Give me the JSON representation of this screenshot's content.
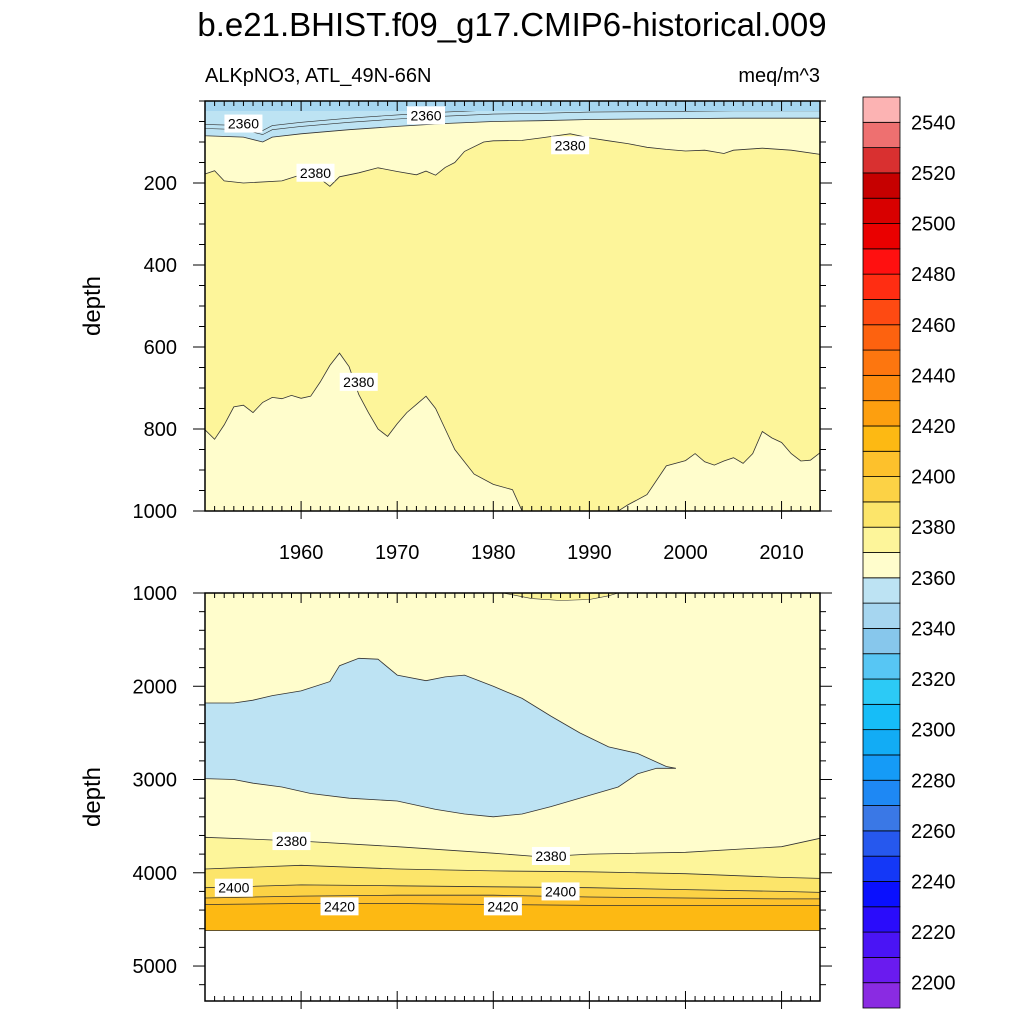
{
  "colors": {
    "c2360": "#bde3f3",
    "c2370": "#fffdcc",
    "c2380": "#fdf59a",
    "c2390": "#fce56a",
    "c2400": "#fcd245",
    "c2410": "#fdc12c",
    "c2420": "#fdb913",
    "c2350": "#a6d6f0",
    "c2340": "#87c7ec"
  },
  "chart_data": {
    "type": "contour",
    "title": "b.e21.BHIST.f09_g17.CMIP6-historical.009",
    "left_subtitle": "ALKpNO3, ATL_49N-66N",
    "right_subtitle": "meq/m^3",
    "panels": [
      {
        "name": "upper",
        "ylabel": "depth",
        "xlim": [
          1950,
          2014
        ],
        "ylim": [
          1000,
          0
        ],
        "x_ticks": [
          1960,
          1970,
          1980,
          1990,
          2000,
          2010
        ],
        "y_ticks": [
          200,
          400,
          600,
          800,
          1000
        ],
        "contour_labels": [
          {
            "text": "2360",
            "x": 1954,
            "y": 55
          },
          {
            "text": "2360",
            "x": 1973,
            "y": 35
          },
          {
            "text": "2380",
            "x": 1961.5,
            "y": 175
          },
          {
            "text": "2380",
            "x": 1988,
            "y": 108
          },
          {
            "text": "2380",
            "x": 1966,
            "y": 685
          }
        ],
        "contour_levels": {
          "boundary_2370": [
            [
              1950,
              85
            ],
            [
              1954,
              88
            ],
            [
              1956,
              100
            ],
            [
              1957,
              88
            ],
            [
              1960,
              80
            ],
            [
              1965,
              70
            ],
            [
              1970,
              62
            ],
            [
              1975,
              55
            ],
            [
              1980,
              50
            ],
            [
              1985,
              48
            ],
            [
              1990,
              45
            ],
            [
              1995,
              44
            ],
            [
              2000,
              43
            ],
            [
              2005,
              42
            ],
            [
              2010,
              42
            ],
            [
              2014,
              42
            ]
          ],
          "boundary_2380_top": [
            [
              1950,
              178
            ],
            [
              1951,
              170
            ],
            [
              1952,
              195
            ],
            [
              1954,
              200
            ],
            [
              1958,
              195
            ],
            [
              1960,
              180
            ],
            [
              1961,
              168
            ],
            [
              1962,
              190
            ],
            [
              1963,
              208
            ],
            [
              1964,
              185
            ],
            [
              1966,
              175
            ],
            [
              1968,
              163
            ],
            [
              1970,
              172
            ],
            [
              1972,
              180
            ],
            [
              1973,
              171
            ],
            [
              1974,
              181
            ],
            [
              1975,
              162
            ],
            [
              1976,
              150
            ],
            [
              1977,
              123
            ],
            [
              1979,
              100
            ],
            [
              1980,
              97
            ],
            [
              1983,
              96
            ],
            [
              1985,
              90
            ],
            [
              1988,
              80
            ],
            [
              1990,
              90
            ],
            [
              1992,
              97
            ],
            [
              1994,
              104
            ],
            [
              1996,
              113
            ],
            [
              1998,
              118
            ],
            [
              2000,
              122
            ],
            [
              2002,
              120
            ],
            [
              2004,
              128
            ],
            [
              2005,
              120
            ],
            [
              2008,
              115
            ],
            [
              2011,
              120
            ],
            [
              2014,
              130
            ]
          ],
          "boundary_2380_bottom": [
            [
              1950,
              802
            ],
            [
              1951,
              825
            ],
            [
              1952,
              790
            ],
            [
              1953,
              746
            ],
            [
              1954,
              742
            ],
            [
              1955,
              760
            ],
            [
              1956,
              735
            ],
            [
              1957,
              723
            ],
            [
              1958,
              726
            ],
            [
              1959,
              718
            ],
            [
              1960,
              725
            ],
            [
              1961,
              720
            ],
            [
              1962,
              685
            ],
            [
              1963,
              645
            ],
            [
              1964,
              615
            ],
            [
              1965,
              648
            ],
            [
              1966,
              716
            ],
            [
              1967,
              760
            ],
            [
              1968,
              800
            ],
            [
              1969,
              818
            ],
            [
              1970,
              787
            ],
            [
              1971,
              760
            ],
            [
              1972,
              740
            ],
            [
              1973,
              720
            ],
            [
              1974,
              750
            ],
            [
              1975,
              800
            ],
            [
              1976,
              850
            ],
            [
              1978,
              910
            ],
            [
              1980,
              935
            ],
            [
              1982,
              948
            ],
            [
              1983,
              1000
            ],
            [
              1993,
              1000
            ],
            [
              1994,
              985
            ],
            [
              1996,
              960
            ],
            [
              1998,
              890
            ],
            [
              2000,
              877
            ],
            [
              2001,
              860
            ],
            [
              2002,
              880
            ],
            [
              2003,
              888
            ],
            [
              2004,
              878
            ],
            [
              2005,
              870
            ],
            [
              2006,
              884
            ],
            [
              2007,
              860
            ],
            [
              2008,
              806
            ],
            [
              2009,
              822
            ],
            [
              2010,
              833
            ],
            [
              2011,
              860
            ],
            [
              2012,
              878
            ],
            [
              2013,
              876
            ],
            [
              2014,
              858
            ]
          ]
        }
      },
      {
        "name": "lower",
        "ylabel": "depth",
        "xlim": [
          1950,
          2014
        ],
        "ylim": [
          5375,
          1000
        ],
        "y_ticks": [
          1000,
          2000,
          3000,
          4000,
          5000
        ],
        "contour_labels": [
          {
            "text": "2380",
            "x": 1959,
            "y": 3660
          },
          {
            "text": "2380",
            "x": 1986,
            "y": 3820
          },
          {
            "text": "2400",
            "x": 1953,
            "y": 4160
          },
          {
            "text": "2400",
            "x": 1987,
            "y": 4200
          },
          {
            "text": "2420",
            "x": 1964,
            "y": 4360
          },
          {
            "text": "2420",
            "x": 1981,
            "y": 4360
          }
        ],
        "contour_levels": {
          "blob_2360": [
            [
              1950,
              2180
            ],
            [
              1953,
              2180
            ],
            [
              1955,
              2150
            ],
            [
              1957,
              2100
            ],
            [
              1960,
              2050
            ],
            [
              1963,
              1950
            ],
            [
              1964,
              1780
            ],
            [
              1966,
              1700
            ],
            [
              1968,
              1710
            ],
            [
              1970,
              1880
            ],
            [
              1973,
              1940
            ],
            [
              1975,
              1900
            ],
            [
              1977,
              1880
            ],
            [
              1980,
              2000
            ],
            [
              1983,
              2130
            ],
            [
              1986,
              2320
            ],
            [
              1989,
              2500
            ],
            [
              1992,
              2650
            ],
            [
              1995,
              2720
            ],
            [
              1998,
              2860
            ],
            [
              1999,
              2880
            ],
            [
              1997,
              2880
            ],
            [
              1995,
              2940
            ],
            [
              1993,
              3080
            ],
            [
              1990,
              3170
            ],
            [
              1986,
              3290
            ],
            [
              1983,
              3370
            ],
            [
              1980,
              3400
            ],
            [
              1977,
              3370
            ],
            [
              1974,
              3320
            ],
            [
              1970,
              3230
            ],
            [
              1965,
              3200
            ],
            [
              1961,
              3150
            ],
            [
              1958,
              3080
            ],
            [
              1955,
              3040
            ],
            [
              1953,
              3000
            ],
            [
              1950,
              2990
            ]
          ],
          "bump_2380": [
            [
              1981,
              1000
            ],
            [
              1984,
              1060
            ],
            [
              1987,
              1080
            ],
            [
              1990,
              1070
            ],
            [
              1992,
              1030
            ],
            [
              1993,
              1000
            ]
          ],
          "bands": [
            {
              "level": 2380,
              "from": [
                [
                  1950,
                  3620
                ],
                [
                  1960,
                  3660
                ],
                [
                  1970,
                  3720
                ],
                [
                  1980,
                  3790
                ],
                [
                  1985,
                  3830
                ],
                [
                  1990,
                  3800
                ],
                [
                  2000,
                  3780
                ],
                [
                  2010,
                  3720
                ],
                [
                  2014,
                  3630
                ]
              ]
            },
            {
              "level": 2390,
              "from": [
                [
                  1950,
                  3960
                ],
                [
                  1960,
                  3920
                ],
                [
                  1970,
                  3960
                ],
                [
                  1980,
                  3980
                ],
                [
                  1990,
                  3990
                ],
                [
                  2000,
                  4010
                ],
                [
                  2010,
                  4050
                ],
                [
                  2014,
                  4060
                ]
              ]
            },
            {
              "level": 2400,
              "from": [
                [
                  1950,
                  4160
                ],
                [
                  1960,
                  4130
                ],
                [
                  1970,
                  4140
                ],
                [
                  1980,
                  4150
                ],
                [
                  1990,
                  4160
                ],
                [
                  2000,
                  4180
                ],
                [
                  2010,
                  4200
                ],
                [
                  2014,
                  4210
                ]
              ]
            },
            {
              "level": 2410,
              "from": [
                [
                  1950,
                  4270
                ],
                [
                  1960,
                  4250
                ],
                [
                  1970,
                  4240
                ],
                [
                  1980,
                  4240
                ],
                [
                  1990,
                  4260
                ],
                [
                  2000,
                  4270
                ],
                [
                  2010,
                  4280
                ],
                [
                  2014,
                  4280
                ]
              ]
            },
            {
              "level": 2420,
              "from": [
                [
                  1950,
                  4340
                ],
                [
                  1960,
                  4330
                ],
                [
                  1970,
                  4330
                ],
                [
                  1980,
                  4340
                ],
                [
                  1990,
                  4350
                ],
                [
                  2000,
                  4350
                ],
                [
                  2010,
                  4350
                ],
                [
                  2014,
                  4350
                ]
              ]
            }
          ],
          "data_bottom": 4620
        }
      }
    ],
    "colorbar": {
      "levels": [
        2200,
        2210,
        2220,
        2230,
        2240,
        2250,
        2260,
        2270,
        2280,
        2290,
        2300,
        2310,
        2320,
        2330,
        2340,
        2350,
        2360,
        2370,
        2380,
        2390,
        2400,
        2410,
        2420,
        2430,
        2440,
        2450,
        2460,
        2470,
        2480,
        2490,
        2500,
        2510,
        2520,
        2530,
        2540,
        2550
      ],
      "tick_labels": [
        "2200",
        "2220",
        "2240",
        "2260",
        "2280",
        "2300",
        "2320",
        "2340",
        "2360",
        "2380",
        "2400",
        "2420",
        "2440",
        "2460",
        "2480",
        "2500",
        "2520",
        "2540"
      ],
      "colors": [
        "#8a2be2",
        "#6a1bef",
        "#4a14f5",
        "#2a0cfb",
        "#0a10fe",
        "#1438f7",
        "#2658ee",
        "#3a78e6",
        "#1e88f4",
        "#159bf7",
        "#12acf5",
        "#16bdf8",
        "#2ccaf6",
        "#57c6f4",
        "#87c7ec",
        "#a6d6f0",
        "#bde3f3",
        "#fffdcc",
        "#fdf59a",
        "#fce56a",
        "#fcd245",
        "#fdc12c",
        "#fdb913",
        "#fd9f0f",
        "#fd8a0f",
        "#fd760f",
        "#fd620f",
        "#fe4a12",
        "#ff2d12",
        "#ff1010",
        "#ea0000",
        "#d80000",
        "#c60000",
        "#d93030",
        "#ee7070",
        "#fcb3b3"
      ]
    }
  }
}
